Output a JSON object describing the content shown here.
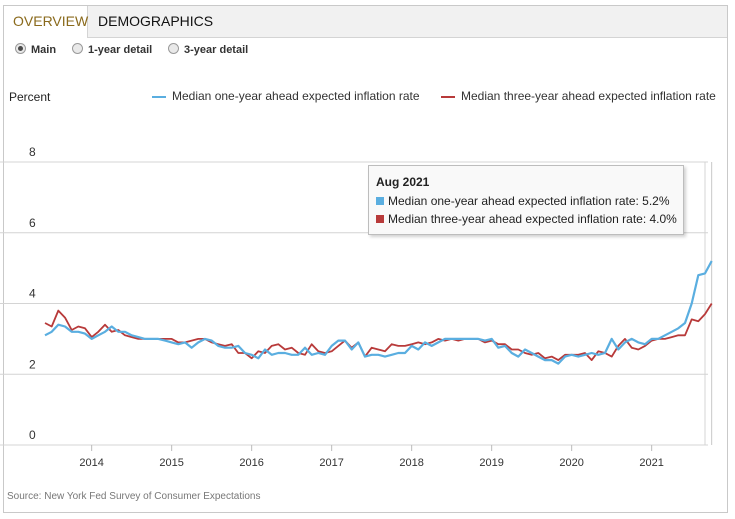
{
  "tabs": [
    {
      "label": "OVERVIEW",
      "active": true
    },
    {
      "label": "DEMOGRAPHICS",
      "active": false
    }
  ],
  "radios": [
    {
      "label": "Main",
      "checked": true
    },
    {
      "label": "1-year detail",
      "checked": false
    },
    {
      "label": "3-year detail",
      "checked": false
    }
  ],
  "colors": {
    "one_year": "#5aaee0",
    "three_year": "#b83a3a",
    "grid": "#d4d4d4",
    "active_tab_text": "#8a6a1c"
  },
  "tooltip": {
    "title": "Aug 2021",
    "row1": "Median one-year ahead expected inflation rate: 5.2%",
    "row2": "Median three-year ahead expected inflation rate: 4.0%"
  },
  "source": "Source: New York Fed Survey of Consumer Expectations",
  "chart_data": {
    "type": "line",
    "ylabel": "Percent",
    "ylim": [
      0,
      8
    ],
    "yticks": [
      "0",
      "2",
      "4",
      "6",
      "8"
    ],
    "xticks": [
      "2014",
      "2015",
      "2016",
      "2017",
      "2018",
      "2019",
      "2020",
      "2021"
    ],
    "x_start": "2013-06",
    "x_end": "2021-08",
    "grid": true,
    "legend_position": "top",
    "series": [
      {
        "name": "Median one-year ahead expected inflation rate",
        "values": [
          3.1,
          3.2,
          3.4,
          3.35,
          3.2,
          3.2,
          3.15,
          3.0,
          3.1,
          3.2,
          3.35,
          3.2,
          3.2,
          3.1,
          3.05,
          3.0,
          3.0,
          3.0,
          2.95,
          2.9,
          2.85,
          2.9,
          2.75,
          2.9,
          3.0,
          2.95,
          2.8,
          2.75,
          2.75,
          2.8,
          2.6,
          2.55,
          2.45,
          2.7,
          2.55,
          2.6,
          2.6,
          2.55,
          2.55,
          2.75,
          2.55,
          2.6,
          2.55,
          2.8,
          2.95,
          2.95,
          2.7,
          2.9,
          2.5,
          2.55,
          2.55,
          2.5,
          2.55,
          2.6,
          2.6,
          2.8,
          2.7,
          2.9,
          2.8,
          2.9,
          3.0,
          3.0,
          3.0,
          3.0,
          3.0,
          3.0,
          2.95,
          3.0,
          2.75,
          2.8,
          2.6,
          2.5,
          2.7,
          2.6,
          2.5,
          2.4,
          2.4,
          2.3,
          2.5,
          2.55,
          2.5,
          2.55,
          2.6,
          2.55,
          2.6,
          3.0,
          2.7,
          2.9,
          3.0,
          2.9,
          2.85,
          3.0,
          3.0,
          3.1,
          3.2,
          3.3,
          3.45,
          4.0,
          4.8,
          4.85,
          5.2
        ]
      },
      {
        "name": "Median three-year ahead expected inflation rate",
        "values": [
          3.45,
          3.35,
          3.8,
          3.6,
          3.25,
          3.35,
          3.3,
          3.05,
          3.2,
          3.4,
          3.2,
          3.25,
          3.1,
          3.05,
          3.0,
          3.0,
          3.0,
          3.0,
          3.0,
          3.0,
          2.9,
          2.9,
          2.95,
          3.0,
          3.0,
          2.9,
          2.85,
          2.8,
          2.85,
          2.6,
          2.6,
          2.45,
          2.65,
          2.6,
          2.8,
          2.85,
          2.7,
          2.75,
          2.6,
          2.55,
          2.85,
          2.65,
          2.6,
          2.65,
          2.8,
          2.95,
          2.75,
          2.9,
          2.5,
          2.75,
          2.7,
          2.65,
          2.85,
          2.8,
          2.8,
          2.85,
          2.9,
          2.85,
          2.9,
          3.0,
          2.95,
          3.0,
          2.95,
          3.0,
          3.0,
          3.0,
          2.9,
          2.95,
          2.85,
          2.85,
          2.7,
          2.7,
          2.6,
          2.55,
          2.6,
          2.45,
          2.5,
          2.4,
          2.55,
          2.55,
          2.55,
          2.6,
          2.4,
          2.65,
          2.6,
          2.5,
          2.8,
          3.0,
          2.75,
          2.7,
          2.8,
          2.95,
          3.0,
          3.0,
          3.05,
          3.1,
          3.1,
          3.55,
          3.5,
          3.7,
          4.0
        ]
      }
    ]
  }
}
